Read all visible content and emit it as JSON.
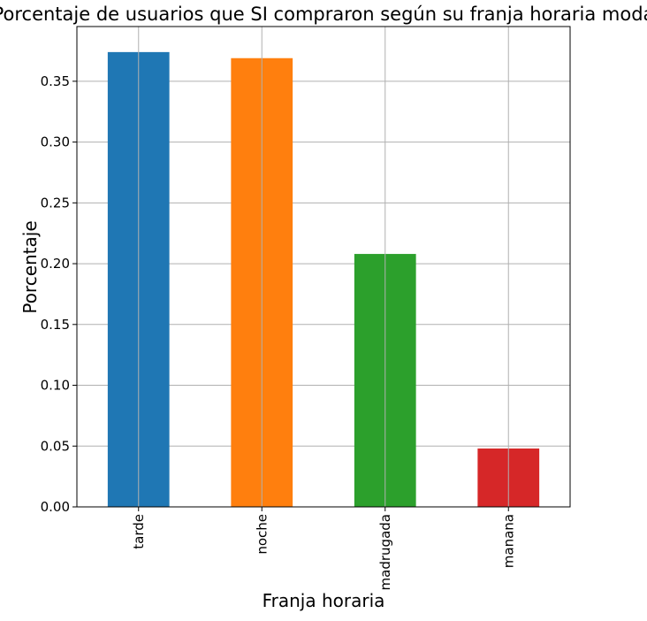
{
  "chart_data": {
    "type": "bar",
    "title": "Porcentaje de usuarios que SI compraron según su franja horaria moda",
    "xlabel": "Franja horaria",
    "ylabel": "Porcentaje",
    "categories": [
      "tarde",
      "noche",
      "madrugada",
      "manana"
    ],
    "values": [
      0.374,
      0.369,
      0.208,
      0.048
    ],
    "colors": [
      "#1f77b4",
      "#ff7f0e",
      "#2ca02c",
      "#d62728"
    ],
    "ylim": [
      0,
      0.395
    ],
    "yticks": [
      0.0,
      0.05,
      0.1,
      0.15,
      0.2,
      0.25,
      0.3,
      0.35
    ],
    "ytick_labels": [
      "0.00",
      "0.05",
      "0.10",
      "0.15",
      "0.20",
      "0.25",
      "0.30",
      "0.35"
    ],
    "grid": true,
    "legend": false
  }
}
